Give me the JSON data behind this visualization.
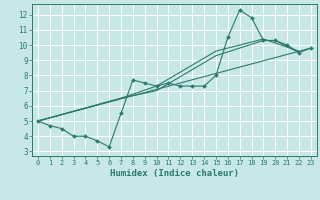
{
  "xlabel": "Humidex (Indice chaleur)",
  "bg_color": "#c8e8e8",
  "line_color": "#2a7a6a",
  "grid_color": "#ffffff",
  "xlim": [
    -0.5,
    23.5
  ],
  "ylim": [
    2.7,
    12.7
  ],
  "xticks": [
    0,
    1,
    2,
    3,
    4,
    5,
    6,
    7,
    8,
    9,
    10,
    11,
    12,
    13,
    14,
    15,
    16,
    17,
    18,
    19,
    20,
    21,
    22,
    23
  ],
  "yticks": [
    3,
    4,
    5,
    6,
    7,
    8,
    9,
    10,
    11,
    12
  ],
  "series1_x": [
    0,
    1,
    2,
    3,
    4,
    5,
    6,
    7,
    8,
    9,
    10,
    11,
    12,
    13,
    14,
    15,
    16,
    17,
    18,
    19,
    20,
    21,
    22,
    23
  ],
  "series1_y": [
    5.0,
    4.7,
    4.5,
    4.0,
    4.0,
    3.7,
    3.3,
    5.5,
    7.7,
    7.5,
    7.3,
    7.5,
    7.3,
    7.3,
    7.3,
    8.0,
    10.5,
    12.3,
    11.8,
    10.3,
    10.3,
    10.0,
    9.5,
    9.8
  ],
  "series2_x": [
    0,
    7,
    10,
    15,
    19,
    20,
    22
  ],
  "series2_y": [
    5.0,
    6.5,
    7.0,
    9.3,
    10.3,
    10.3,
    9.5
  ],
  "series3_x": [
    0,
    7,
    10,
    15,
    19,
    22
  ],
  "series3_y": [
    5.0,
    6.5,
    7.3,
    9.6,
    10.4,
    9.6
  ],
  "series4_x": [
    0,
    23
  ],
  "series4_y": [
    5.0,
    9.8
  ]
}
